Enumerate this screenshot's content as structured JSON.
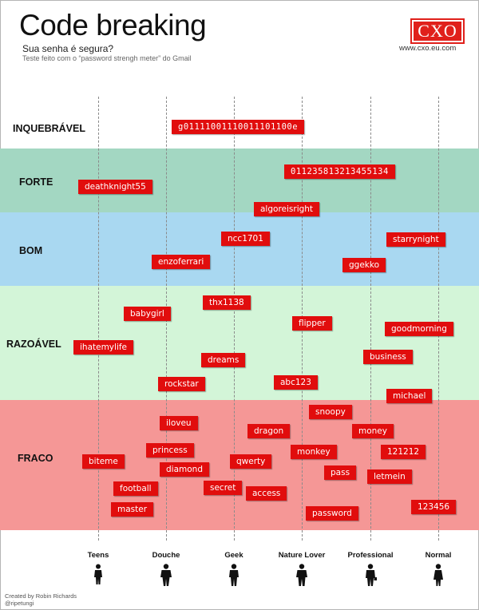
{
  "header": {
    "title": "Code breaking",
    "subtitle": "Sua senha é segura?",
    "note": "Teste feito com o “password strengh meter” do Gmail",
    "logo": "CXO",
    "site": "www.cxo.eu.com"
  },
  "colors": {
    "inquebravel": "#ffffff",
    "forte": "#a3d7c2",
    "bom": "#a9d8f1",
    "razoavel": "#d3f5d8",
    "fraco": "#f59796",
    "tag": "#e10d0d"
  },
  "bands": [
    {
      "key": "inquebravel",
      "label": "INQUEBRÁVEL"
    },
    {
      "key": "forte",
      "label": "FORTE"
    },
    {
      "key": "bom",
      "label": "BOM"
    },
    {
      "key": "razoavel",
      "label": "RAZOÁVEL"
    },
    {
      "key": "fraco",
      "label": "FRACO"
    }
  ],
  "axis": [
    "Teens",
    "Douche",
    "Geek",
    "Nature Lover",
    "Professional",
    "Normal"
  ],
  "passwords": [
    "g01111001110011101100e",
    "011235813213455134",
    "deathknight55",
    "algoreisright",
    "ncc1701",
    "starrynight",
    "enzoferrari",
    "ggekko",
    "thx1138",
    "babygirl",
    "flipper",
    "goodmorning",
    "ihatemylife",
    "business",
    "dreams",
    "abc123",
    "rockstar",
    "michael",
    "snoopy",
    "iloveu",
    "dragon",
    "money",
    "princess",
    "monkey",
    "121212",
    "biteme",
    "qwerty",
    "diamond",
    "pass",
    "letmein",
    "football",
    "secret",
    "access",
    "master",
    "password",
    "123456"
  ],
  "credit": {
    "line1": "Created by Robin Richards",
    "line2": "@ripetungi"
  }
}
